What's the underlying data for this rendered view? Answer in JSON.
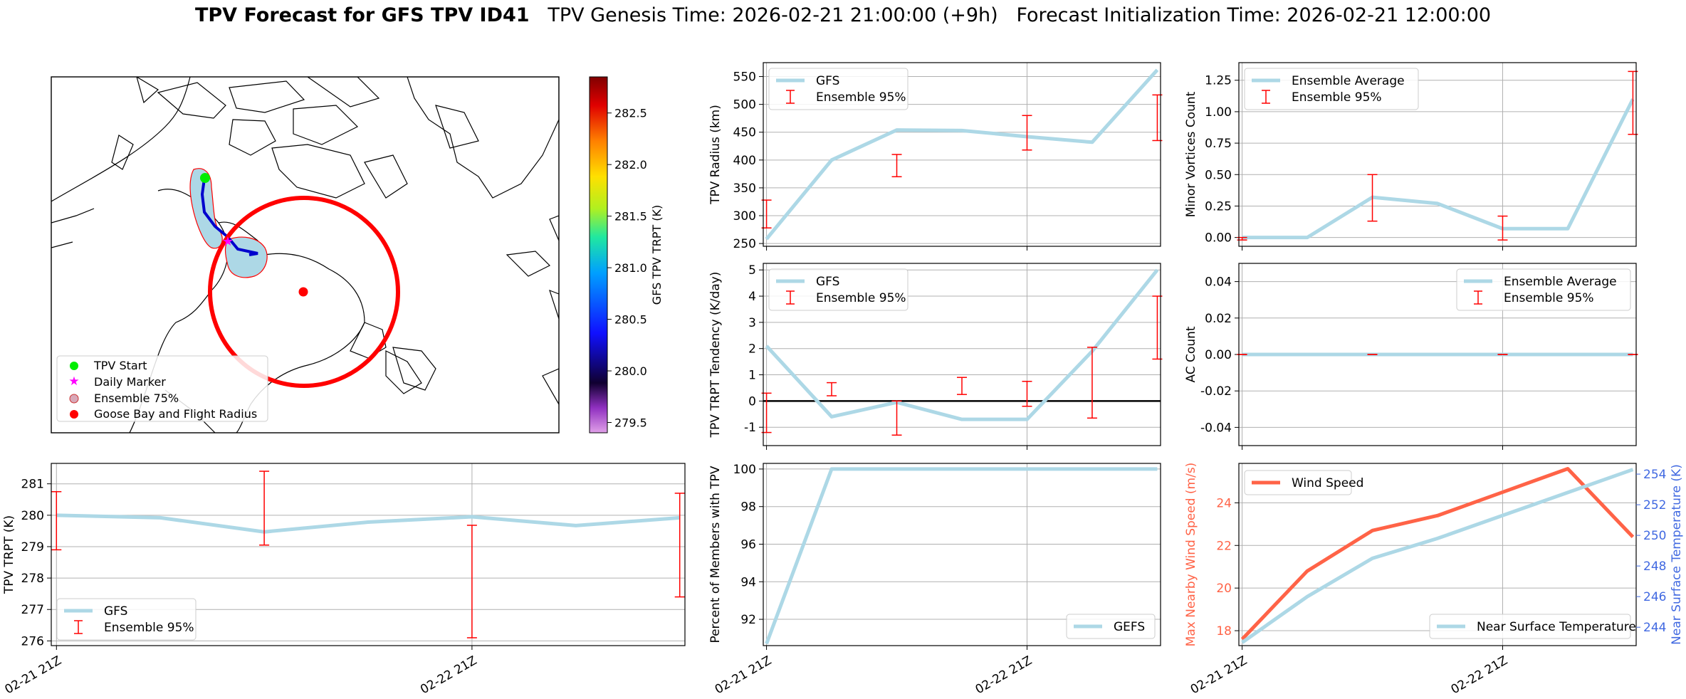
{
  "title": {
    "bold": "TPV Forecast for GFS TPV ID41",
    "genesis": "TPV Genesis Time: 2026-02-21 21:00:00 (+9h)",
    "init": "Forecast Initialization Time: 2026-02-21 12:00:00"
  },
  "colors": {
    "gfs_line": "#add8e6",
    "errorbar": "#ff0000",
    "wind": "#ff6347",
    "temp_axis": "#4169e1",
    "grid": "#b0b0b0"
  },
  "map": {
    "legend": [
      "TPV Start",
      "Daily Marker",
      "Ensemble 75%",
      "Goose Bay and Flight Radius"
    ],
    "colorbar": {
      "label": "GFS TPV TRPT (K)",
      "ticks": [
        "279.5",
        "280.0",
        "280.5",
        "281.0",
        "281.5",
        "282.0",
        "282.5"
      ]
    }
  },
  "chart_data": [
    {
      "id": "radius",
      "type": "line",
      "ylabel": "TPV Radius (km)",
      "ylim": [
        245,
        575
      ],
      "yticks": [
        250,
        300,
        350,
        400,
        450,
        500,
        550
      ],
      "x": [
        0,
        1,
        2,
        3,
        4,
        5,
        6
      ],
      "xtick_labels": [],
      "series": [
        {
          "name": "GFS",
          "values": [
            258,
            400,
            454,
            453,
            442,
            432,
            562
          ]
        }
      ],
      "errorbars": {
        "name": "Ensemble 95%",
        "x": [
          0,
          2,
          4,
          6
        ],
        "low": [
          278,
          370,
          418,
          435
        ],
        "high": [
          328,
          410,
          480,
          517
        ]
      },
      "legend_loc": "upper left"
    },
    {
      "id": "minor",
      "type": "line",
      "ylabel": "Minor Vortices Count",
      "ylim": [
        -0.07,
        1.39
      ],
      "yticks": [
        0.0,
        0.25,
        0.5,
        0.75,
        1.0,
        1.25
      ],
      "x": [
        0,
        1,
        2,
        3,
        4,
        5,
        6
      ],
      "xtick_labels": [],
      "series": [
        {
          "name": "Ensemble Average",
          "values": [
            0,
            0,
            0.32,
            0.27,
            0.07,
            0.07,
            1.1
          ]
        }
      ],
      "errorbars": {
        "name": "Ensemble 95%",
        "x": [
          0,
          2,
          4,
          6
        ],
        "low": [
          -0.02,
          0.13,
          -0.02,
          0.82
        ],
        "high": [
          0.0,
          0.5,
          0.17,
          1.32
        ]
      },
      "legend_loc": "upper left"
    },
    {
      "id": "tendency",
      "type": "line",
      "ylabel": "TPV TRPT Tendency (K/day)",
      "ylim": [
        -1.7,
        5.25
      ],
      "yticks": [
        -1,
        0,
        1,
        2,
        3,
        4,
        5
      ],
      "x": [
        0,
        1,
        2,
        3,
        4,
        5,
        6
      ],
      "xtick_labels": [],
      "series": [
        {
          "name": "GFS",
          "values": [
            2.1,
            -0.6,
            -0.05,
            -0.7,
            -0.7,
            1.9,
            5.0
          ]
        }
      ],
      "errorbars": {
        "name": "Ensemble 95%",
        "x": [
          0,
          1,
          2,
          3,
          4,
          5,
          6
        ],
        "low": [
          -1.2,
          0.2,
          -1.3,
          0.25,
          -0.2,
          -0.65,
          1.6
        ],
        "high": [
          0.3,
          0.7,
          0.0,
          0.9,
          0.75,
          2.05,
          4.0
        ]
      },
      "zero_line": true,
      "legend_loc": "upper left"
    },
    {
      "id": "ac",
      "type": "line",
      "ylabel": "AC Count",
      "ylim": [
        -0.05,
        0.05
      ],
      "yticks": [
        -0.04,
        -0.02,
        0.0,
        0.02,
        0.04
      ],
      "x": [
        0,
        1,
        2,
        3,
        4,
        5,
        6
      ],
      "xtick_labels": [],
      "series": [
        {
          "name": "Ensemble Average",
          "values": [
            0,
            0,
            0,
            0,
            0,
            0,
            0
          ]
        }
      ],
      "errorbars": {
        "name": "Ensemble 95%",
        "x": [
          0,
          2,
          4,
          6
        ],
        "low": [
          0,
          0,
          0,
          0
        ],
        "high": [
          0,
          0,
          0,
          0
        ]
      },
      "legend_loc": "upper right"
    },
    {
      "id": "trpt",
      "type": "line",
      "ylabel": "TPV TRPT (K)",
      "ylim": [
        275.85,
        281.65
      ],
      "yticks": [
        276,
        277,
        278,
        279,
        280,
        281
      ],
      "x": [
        0,
        1,
        2,
        3,
        4,
        5,
        6
      ],
      "xticks": [
        0,
        4
      ],
      "xtick_labels": [
        "02-21 21Z",
        "02-22 21Z"
      ],
      "series": [
        {
          "name": "GFS",
          "values": [
            280.0,
            279.92,
            279.47,
            279.78,
            279.95,
            279.67,
            279.92
          ]
        }
      ],
      "errorbars": {
        "name": "Ensemble 95%",
        "x": [
          0,
          2,
          4,
          6
        ],
        "low": [
          278.9,
          279.05,
          276.1,
          277.4
        ],
        "high": [
          280.75,
          281.4,
          279.68,
          280.7
        ]
      },
      "legend_loc": "lower left"
    },
    {
      "id": "percent",
      "type": "line",
      "ylabel": "Percent of Members with TPV",
      "ylim": [
        90.6,
        100.3
      ],
      "yticks": [
        92,
        94,
        96,
        98,
        100
      ],
      "x": [
        0,
        1,
        2,
        3,
        4,
        5,
        6
      ],
      "xticks": [
        0,
        4
      ],
      "xtick_labels": [
        "02-21 21Z",
        "02-22 21Z"
      ],
      "series": [
        {
          "name": "GEFS",
          "values": [
            90.7,
            100,
            100,
            100,
            100,
            100,
            100
          ]
        }
      ],
      "legend_loc": "lower right"
    },
    {
      "id": "wind_temp",
      "type": "line",
      "ylabel": "Max Nearby Wind Speed (m/s)",
      "y2label": "Near Surface Temperature (K)",
      "ylim": [
        17.3,
        25.85
      ],
      "yticks": [
        18,
        20,
        22,
        24
      ],
      "y2lim": [
        242.8,
        254.7
      ],
      "y2ticks": [
        244,
        246,
        248,
        250,
        252,
        254
      ],
      "x": [
        0,
        1,
        2,
        3,
        4,
        5,
        6
      ],
      "xticks": [
        0,
        4
      ],
      "xtick_labels": [
        "02-21 21Z",
        "02-22 21Z"
      ],
      "series": [
        {
          "name": "Wind Speed",
          "axis": "left",
          "values": [
            17.6,
            20.8,
            22.7,
            23.4,
            24.5,
            25.6,
            22.4
          ]
        },
        {
          "name": "Near Surface Temperature",
          "axis": "right",
          "values": [
            243.0,
            246.0,
            248.5,
            249.8,
            251.3,
            252.8,
            254.3
          ]
        }
      ]
    }
  ]
}
